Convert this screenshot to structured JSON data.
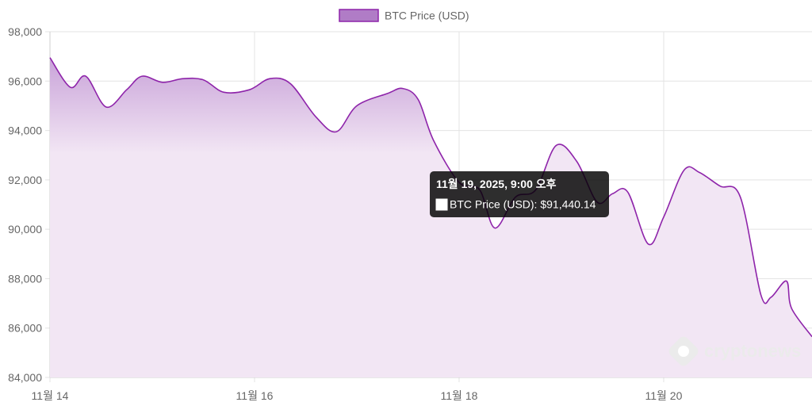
{
  "chart_data": {
    "type": "area",
    "title": "",
    "xlabel": "",
    "ylabel": "",
    "legend": {
      "position": "top-center"
    },
    "grid": true,
    "x_tick_labels": [
      "11월 14",
      "11월 16",
      "11월 18",
      "11월 20"
    ],
    "x_ticks_day": [
      14,
      16,
      18,
      20
    ],
    "xlim_day": [
      14,
      21.45
    ],
    "ylim": [
      84000,
      98000
    ],
    "y_ticks": [
      84000,
      86000,
      88000,
      90000,
      92000,
      94000,
      96000,
      98000
    ],
    "y_tick_labels": [
      "84,000",
      "86,000",
      "88,000",
      "90,000",
      "92,000",
      "94,000",
      "96,000",
      "98,000"
    ],
    "series": [
      {
        "name": "BTC Price (USD)",
        "color": "#8e24aa",
        "fill_top": "#c9a3d9",
        "fill_bottom": "#f2e6f4",
        "x_day": [
          14.0,
          14.2,
          14.35,
          14.55,
          14.75,
          14.9,
          15.1,
          15.3,
          15.5,
          15.7,
          15.95,
          16.15,
          16.35,
          16.6,
          16.8,
          17.0,
          17.3,
          17.45,
          17.6,
          17.75,
          18.0,
          18.2,
          18.35,
          18.55,
          18.75,
          18.95,
          19.15,
          19.35,
          19.5,
          19.65,
          19.85,
          20.0,
          20.2,
          20.35,
          20.55,
          20.75,
          20.95,
          21.05,
          21.2,
          21.25,
          21.45
        ],
        "values": [
          96950,
          95750,
          96200,
          94950,
          95650,
          96200,
          95950,
          96100,
          96050,
          95550,
          95650,
          96100,
          95900,
          94550,
          93950,
          95000,
          95500,
          95700,
          95250,
          93600,
          91900,
          91600,
          90050,
          91300,
          91600,
          93400,
          92750,
          91100,
          91440,
          91500,
          89400,
          90500,
          92400,
          92300,
          91750,
          91300,
          87350,
          87250,
          87900,
          86800,
          85650
        ]
      }
    ],
    "tooltip": {
      "title": "11월 19, 2025, 9:00 오후",
      "label": "BTC Price (USD): $91,440.14"
    }
  },
  "watermark": {
    "text": "cryptonews"
  }
}
